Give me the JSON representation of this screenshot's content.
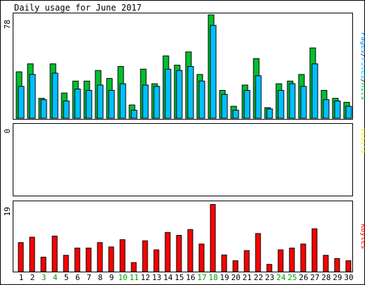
{
  "chart_data": {
    "type": "bar",
    "title": "Daily usage for June 2017",
    "categories": [
      "1",
      "2",
      "3",
      "4",
      "5",
      "6",
      "7",
      "8",
      "9",
      "10",
      "11",
      "12",
      "13",
      "14",
      "15",
      "16",
      "17",
      "18",
      "19",
      "20",
      "21",
      "22",
      "23",
      "24",
      "25",
      "26",
      "27",
      "28",
      "29",
      "30"
    ],
    "weekend_days": [
      "3",
      "4",
      "10",
      "11",
      "17",
      "18",
      "24",
      "25"
    ],
    "panels": [
      {
        "name": "pages-files-hits",
        "max_label": "78",
        "ylim": [
          0,
          78
        ],
        "legend": [
          "Pages",
          "/",
          "Files",
          "/",
          "Hits"
        ],
        "series": [
          {
            "name": "Hits",
            "color": "#00c030",
            "values": [
              35,
              41,
              15,
              41,
              19,
              28,
              28,
              36,
              30,
              39,
              10,
              37,
              26,
              47,
              40,
              50,
              33,
              78,
              21,
              9,
              25,
              45,
              8,
              26,
              28,
              33,
              53,
              21,
              15,
              12
            ]
          },
          {
            "name": "Files",
            "color": "#00c0ff",
            "values": [
              24,
              33,
              14,
              34,
              13,
              22,
              21,
              25,
              21,
              26,
              6,
              25,
              24,
              37,
              36,
              39,
              28,
              70,
              18,
              6,
              21,
              32,
              7,
              21,
              26,
              24,
              41,
              14,
              13,
              9
            ]
          }
        ]
      },
      {
        "name": "visits",
        "max_label": "0",
        "ylim": [
          0,
          1
        ],
        "legend": [
          "Visits"
        ],
        "series": [
          {
            "name": "Visits",
            "color": "#f0f000",
            "values": []
          }
        ]
      },
      {
        "name": "kbytes",
        "max_label": "19",
        "ylim": [
          0,
          19
        ],
        "legend": [
          "KBytes"
        ],
        "series": [
          {
            "name": "KBytes",
            "color": "#ff0000",
            "values": [
              8.0,
              9.5,
              4.0,
              9.8,
              4.5,
              6.5,
              6.5,
              8.0,
              6.8,
              8.8,
              2.5,
              8.5,
              6.0,
              10.8,
              10.0,
              11.6,
              7.6,
              18.5,
              4.6,
              3.0,
              5.8,
              10.5,
              2.0,
              6.0,
              6.5,
              7.6,
              11.8,
              4.5,
              3.6,
              3.0
            ]
          }
        ]
      }
    ]
  }
}
